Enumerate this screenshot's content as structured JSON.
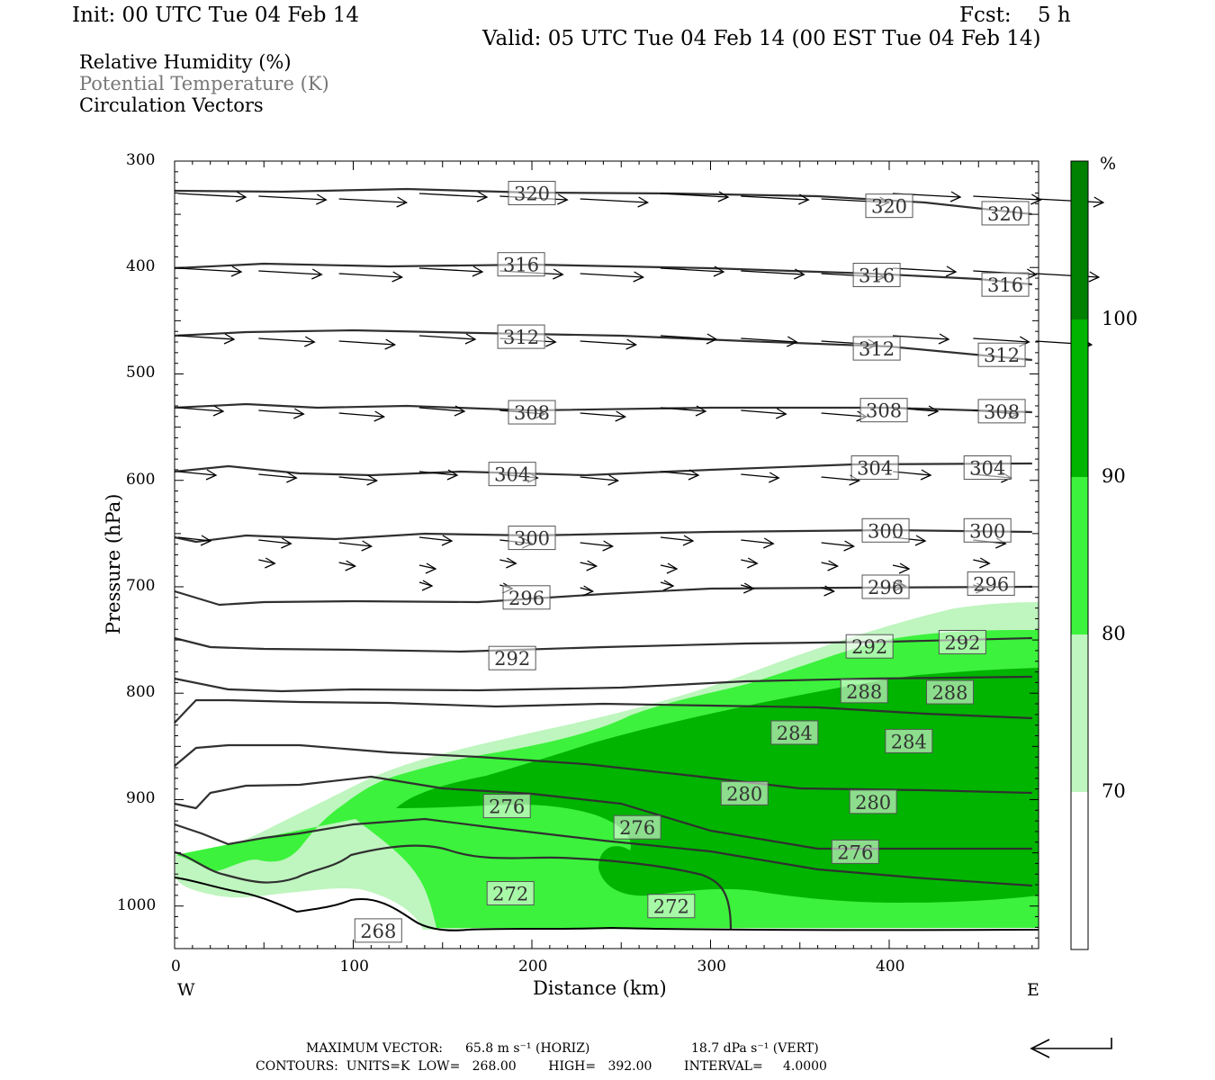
{
  "header": {
    "init": "Init: 00 UTC Tue 04 Feb 14",
    "fcst": "Fcst:    5 h",
    "valid": "Valid: 05 UTC Tue 04 Feb 14 (00 EST Tue 04 Feb 14)"
  },
  "legend": {
    "rh": "Relative Humidity (%)",
    "theta": "Potential Temperature (K)",
    "vectors": "Circulation Vectors"
  },
  "footer": {
    "max_vector_prefix": "MAXIMUM VECTOR:",
    "max_horiz": "65.8 m s⁻¹ (HORIZ)",
    "max_vert": "18.7 dPa s⁻¹ (VERT)",
    "contours": "CONTOURS:  UNITS=K  LOW=   268.00        HIGH=   392.00        INTERVAL=     4.0000"
  },
  "colors": {
    "rh_70_80": "#bff5bf",
    "rh_80_90": "#3cf23c",
    "rh_90_100": "#00b400",
    "rh_100": "#008000",
    "contour": "#303030"
  },
  "chart_data": {
    "type": "cross-section",
    "xlabel": "Distance (km)",
    "ylabel": "Pressure (hPa)",
    "xlim": [
      0,
      485
    ],
    "ylim": [
      1040,
      300
    ],
    "x_ticks": [
      "0",
      "100",
      "200",
      "300",
      "400"
    ],
    "y_ticks": [
      "300",
      "400",
      "500",
      "600",
      "700",
      "800",
      "900",
      "1000"
    ],
    "left_end": "W",
    "right_end": "E",
    "colorbar": {
      "unit": "%",
      "ticks": [
        "70",
        "80",
        "90",
        "100"
      ],
      "levels": [
        70,
        80,
        90,
        100
      ]
    },
    "contour_labels": [
      {
        "text": "320",
        "x": 200,
        "p": 330
      },
      {
        "text": "320",
        "x": 400,
        "p": 342
      },
      {
        "text": "320",
        "x": 465,
        "p": 349
      },
      {
        "text": "316",
        "x": 194,
        "p": 397
      },
      {
        "text": "316",
        "x": 393,
        "p": 407
      },
      {
        "text": "316",
        "x": 465,
        "p": 416
      },
      {
        "text": "312",
        "x": 194,
        "p": 465
      },
      {
        "text": "312",
        "x": 393,
        "p": 476
      },
      {
        "text": "312",
        "x": 463,
        "p": 482
      },
      {
        "text": "308",
        "x": 200,
        "p": 536
      },
      {
        "text": "308",
        "x": 397,
        "p": 534
      },
      {
        "text": "308",
        "x": 463,
        "p": 535
      },
      {
        "text": "304",
        "x": 189,
        "p": 594
      },
      {
        "text": "304",
        "x": 392,
        "p": 588
      },
      {
        "text": "304",
        "x": 455,
        "p": 588
      },
      {
        "text": "300",
        "x": 200,
        "p": 654
      },
      {
        "text": "300",
        "x": 398,
        "p": 647
      },
      {
        "text": "300",
        "x": 455,
        "p": 647
      },
      {
        "text": "296",
        "x": 197,
        "p": 710
      },
      {
        "text": "296",
        "x": 398,
        "p": 700
      },
      {
        "text": "296",
        "x": 457,
        "p": 697
      },
      {
        "text": "292",
        "x": 189,
        "p": 767
      },
      {
        "text": "292",
        "x": 389,
        "p": 756
      },
      {
        "text": "292",
        "x": 441,
        "p": 752
      },
      {
        "text": "288",
        "x": 386,
        "p": 798
      },
      {
        "text": "288",
        "x": 434,
        "p": 799
      },
      {
        "text": "284",
        "x": 347,
        "p": 837
      },
      {
        "text": "284",
        "x": 411,
        "p": 845
      },
      {
        "text": "280",
        "x": 319,
        "p": 894
      },
      {
        "text": "280",
        "x": 391,
        "p": 902
      },
      {
        "text": "276",
        "x": 186,
        "p": 906
      },
      {
        "text": "276",
        "x": 259,
        "p": 926
      },
      {
        "text": "276",
        "x": 381,
        "p": 949
      },
      {
        "text": "272",
        "x": 188,
        "p": 988
      },
      {
        "text": "272",
        "x": 278,
        "p": 1000
      },
      {
        "text": "268",
        "x": 114,
        "p": 1023
      }
    ]
  }
}
